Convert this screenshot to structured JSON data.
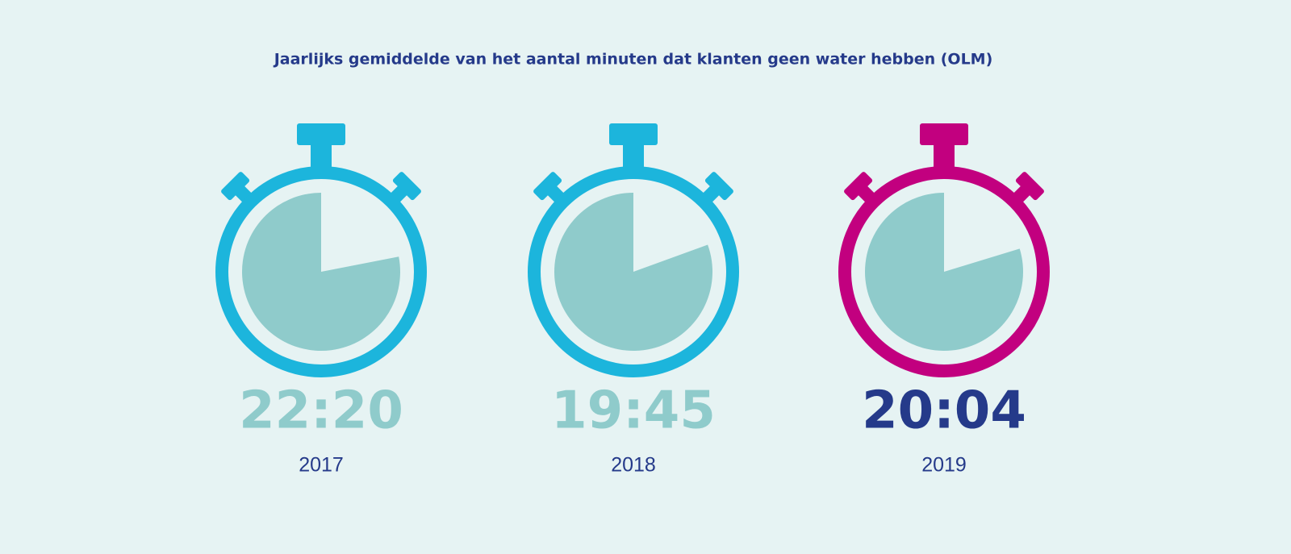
{
  "title": "Jaarlijks gemiddelde van het aantal minuten dat klanten geen water hebben (OLM)",
  "items": [
    {
      "time": "22:20",
      "year": "2017"
    },
    {
      "time": "19:45",
      "year": "2018"
    },
    {
      "time": "20:04",
      "year": "2019"
    }
  ]
}
